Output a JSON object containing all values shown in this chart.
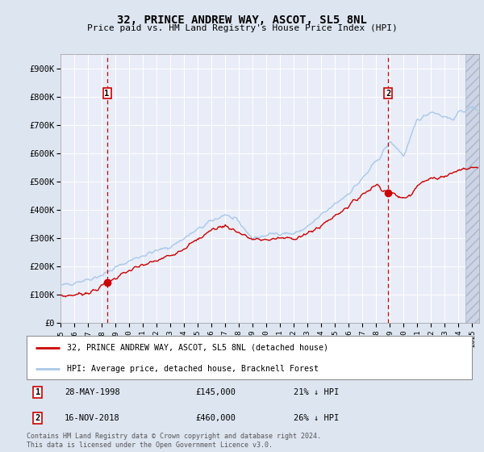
{
  "title": "32, PRINCE ANDREW WAY, ASCOT, SL5 8NL",
  "subtitle": "Price paid vs. HM Land Registry's House Price Index (HPI)",
  "hpi_label": "HPI: Average price, detached house, Bracknell Forest",
  "property_label": "32, PRINCE ANDREW WAY, ASCOT, SL5 8NL (detached house)",
  "annotation1_date": "28-MAY-1998",
  "annotation1_price": "£145,000",
  "annotation1_hpi": "21% ↓ HPI",
  "annotation1_year": 1998.38,
  "annotation1_value": 145000,
  "annotation2_date": "16-NOV-2018",
  "annotation2_price": "£460,000",
  "annotation2_hpi": "26% ↓ HPI",
  "annotation2_year": 2018.87,
  "annotation2_value": 460000,
  "ylim": [
    0,
    950000
  ],
  "xlim_start": 1995.0,
  "xlim_end": 2025.5,
  "background_color": "#dde5f0",
  "plot_bg_color": "#e8edf8",
  "grid_color": "#ffffff",
  "hpi_color": "#aac8e8",
  "property_color": "#cc0000",
  "vline_color": "#cc0000",
  "footer_text": "Contains HM Land Registry data © Crown copyright and database right 2024.\nThis data is licensed under the Open Government Licence v3.0.",
  "yticks": [
    0,
    100000,
    200000,
    300000,
    400000,
    500000,
    600000,
    700000,
    800000,
    900000
  ],
  "ytick_labels": [
    "£0",
    "£100K",
    "£200K",
    "£300K",
    "£400K",
    "£500K",
    "£600K",
    "£700K",
    "£800K",
    "£900K"
  ],
  "xticks": [
    1995,
    1996,
    1997,
    1998,
    1999,
    2000,
    2001,
    2002,
    2003,
    2004,
    2005,
    2006,
    2007,
    2008,
    2009,
    2010,
    2011,
    2012,
    2013,
    2014,
    2015,
    2016,
    2017,
    2018,
    2019,
    2020,
    2021,
    2022,
    2023,
    2024,
    2025
  ]
}
